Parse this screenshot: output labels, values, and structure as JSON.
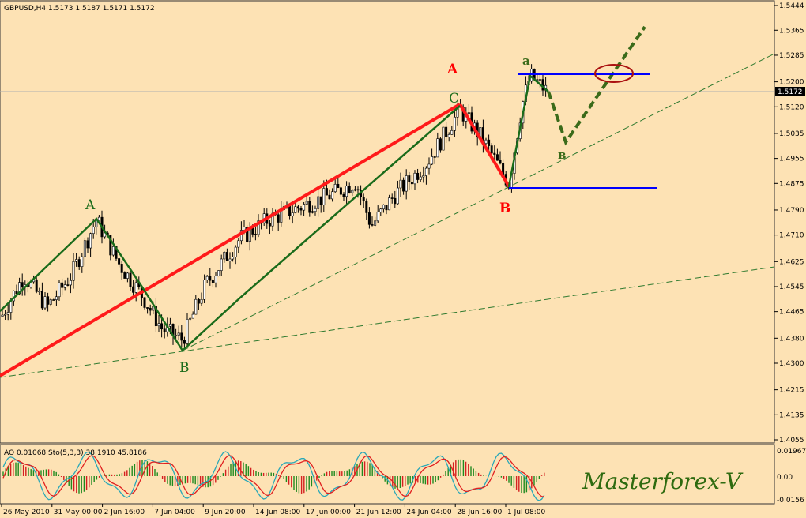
{
  "header": {
    "title": "GBPUSD,H4  1.5173 1.5187 1.5171 1.5172"
  },
  "watermark": "Masterforex-V",
  "indicator": {
    "label": "AO 0.01068  Sto(5,3,3) 38.1910 45.8186",
    "ticks": [
      "0.01967",
      "0.00",
      "-0.0156"
    ]
  },
  "chart_data": {
    "type": "candlestick",
    "symbol": "GBPUSD",
    "timeframe": "H4",
    "ylim": [
      1.4055,
      1.5444
    ],
    "y_ticks": [
      1.5444,
      1.5365,
      1.5285,
      1.52,
      1.512,
      1.5035,
      1.4955,
      1.4875,
      1.479,
      1.471,
      1.4625,
      1.4545,
      1.4465,
      1.438,
      1.43,
      1.4215,
      1.4135,
      1.4055
    ],
    "current_price": "1.5172",
    "x_ticks": [
      "26 May 2010",
      "31 May 00:00",
      "2 Jun 16:00",
      "7 Jun 04:00",
      "9 Jun 20:00",
      "14 Jun 08:00",
      "17 Jun 00:00",
      "21 Jun 12:00",
      "24 Jun 04:00",
      "28 Jun 16:00",
      "1 Jul 08:00"
    ],
    "wave_labels": [
      {
        "text": "A",
        "color": "green"
      },
      {
        "text": "B",
        "color": "green"
      },
      {
        "text": "A",
        "color": "red"
      },
      {
        "text": "C",
        "color": "green"
      },
      {
        "text": "B",
        "color": "red"
      },
      {
        "text": "a",
        "color": "green"
      },
      {
        "text": "в",
        "color": "green"
      }
    ],
    "wave_points": [
      {
        "label": "A",
        "price": 1.4775
      },
      {
        "label": "B",
        "price": 1.4345
      },
      {
        "label": "C",
        "price": 1.513
      },
      {
        "label": "B",
        "price": 1.4875
      },
      {
        "label": "a",
        "price": 1.5225
      },
      {
        "label": "в",
        "price": 1.5005
      }
    ],
    "horizontal_levels": [
      1.5235,
      1.487
    ],
    "grid": false
  }
}
